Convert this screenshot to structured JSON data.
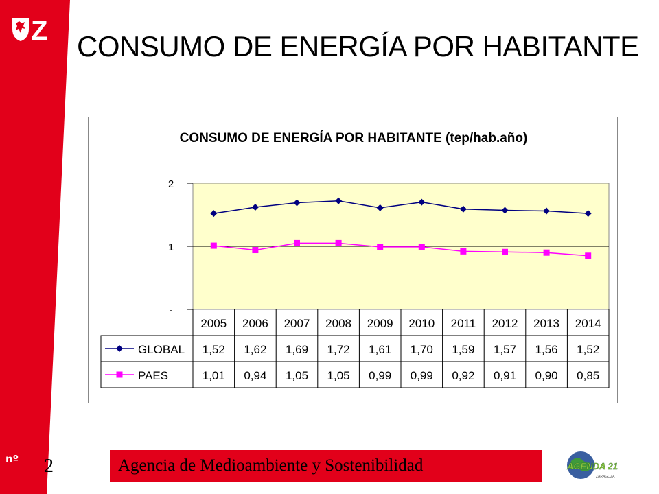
{
  "slide": {
    "title": "CONSUMO DE ENERGÍA POR HABITANTE",
    "num_label": "nº",
    "page_number": "2",
    "footer_text": "Agencia de Medioambiente y Sostenibilidad",
    "logo_text": "Z",
    "agenda_logo_text": "AGENDA 21",
    "agenda_logo_subtext": "ZARAGOZA",
    "colors": {
      "red": "#e2001a",
      "plot_bg": "#ffffcc",
      "global": "#000080",
      "paes": "#ff00ff"
    }
  },
  "chart_data": {
    "type": "line",
    "title": "CONSUMO DE ENERGÍA POR HABITANTE (tep/hab.año)",
    "categories": [
      "2005",
      "2006",
      "2007",
      "2008",
      "2009",
      "2010",
      "2011",
      "2012",
      "2013",
      "2014"
    ],
    "ylim": [
      0,
      2
    ],
    "y_ticks": [
      {
        "value": 0,
        "label": "-"
      },
      {
        "value": 1,
        "label": "1"
      },
      {
        "value": 2,
        "label": "2"
      }
    ],
    "grid": "horizontal",
    "legend": "data-table",
    "series": [
      {
        "name": "GLOBAL",
        "marker": "diamond",
        "color": "#000080",
        "values": [
          1.52,
          1.62,
          1.69,
          1.72,
          1.61,
          1.7,
          1.59,
          1.57,
          1.56,
          1.52
        ],
        "labels": [
          "1,52",
          "1,62",
          "1,69",
          "1,72",
          "1,61",
          "1,70",
          "1,59",
          "1,57",
          "1,56",
          "1,52"
        ]
      },
      {
        "name": "PAES",
        "marker": "square",
        "color": "#ff00ff",
        "values": [
          1.01,
          0.94,
          1.05,
          1.05,
          0.99,
          0.99,
          0.92,
          0.91,
          0.9,
          0.85
        ],
        "labels": [
          "1,01",
          "0,94",
          "1,05",
          "1,05",
          "0,99",
          "0,99",
          "0,92",
          "0,91",
          "0,90",
          "0,85"
        ]
      }
    ]
  }
}
